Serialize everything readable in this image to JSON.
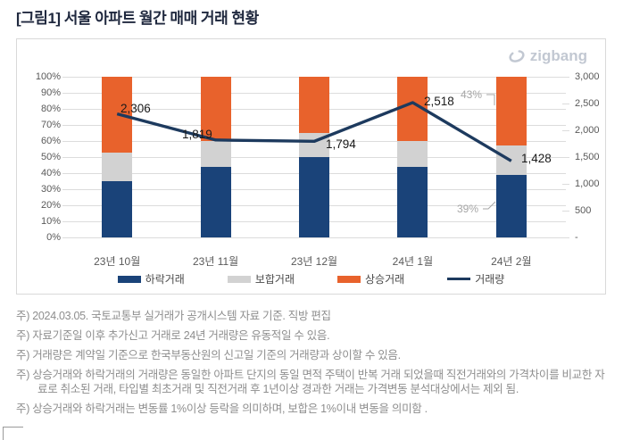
{
  "page": {
    "title": "[그림1] 서울 아파트 월간 매매 거래 현황"
  },
  "brand": {
    "logo_text": "zigbang",
    "logo_color": "#c2c8d2"
  },
  "chart_data": {
    "type": "bar",
    "subtype": "100% stacked bars with volume line overlay",
    "categories": [
      "23년 10월",
      "23년 11월",
      "23년 12월",
      "24년 1월",
      "24년 2월"
    ],
    "series": [
      {
        "name": "하락거래",
        "type": "bar",
        "color": "#1a4379",
        "values_pct": [
          35,
          44,
          50,
          44,
          39
        ]
      },
      {
        "name": "보합거래",
        "type": "bar",
        "color": "#d2d2d2",
        "values_pct": [
          18,
          16,
          15,
          16,
          18
        ]
      },
      {
        "name": "상승거래",
        "type": "bar",
        "color": "#e8622c",
        "values_pct": [
          47,
          40,
          35,
          40,
          43
        ]
      },
      {
        "name": "거래량",
        "type": "line",
        "color": "#1d3a5e",
        "values": [
          2306,
          1819,
          1794,
          2518,
          1428
        ],
        "labels": [
          "2,306",
          "1,819",
          "1,794",
          "2,518",
          "1,428"
        ]
      }
    ],
    "left_axis": {
      "min": 0,
      "max": 100,
      "ticks": [
        "100%",
        "90%",
        "80%",
        "70%",
        "60%",
        "50%",
        "40%",
        "30%",
        "20%",
        "10%",
        "0%"
      ]
    },
    "right_axis": {
      "min": 0,
      "max": 3000,
      "ticks": [
        "3,000",
        "2,500",
        "2,000",
        "1,500",
        "1,000",
        "500",
        "-"
      ]
    },
    "annotations": [
      {
        "text": "43%",
        "target": "24년 2월 상승거래"
      },
      {
        "text": "39%",
        "target": "24년 2월 하락거래"
      }
    ],
    "legend": [
      "하락거래",
      "보합거래",
      "상승거래",
      "거래량"
    ],
    "legend_position": "bottom",
    "grid": true,
    "colors": {
      "grid": "#dcdcdc",
      "axis_text": "#595959",
      "annotation_text": "#a6a6a6",
      "data_label": "#1a1a1a",
      "box_border": "#d9d9d9"
    }
  },
  "footnotes": [
    "주) 2024.03.05. 국토교통부 실거래가 공개시스템 자료 기준. 직방 편집",
    "주) 자료기준일 이후 추가신고 거래로 24년 거래량은 유동적일 수 있음.",
    "주) 거래량은 계약일 기준으로 한국부동산원의 신고일 기준의 거래량과 상이할 수 있음.",
    "주) 상승거래와 하락거래의 거래량은 동일한 아파트 단지의 동일 면적 주택이 반복 거래 되었을때 직전거래와의 가격차이를 비교한 자료로 취소된 거래, 타입별 최초거래 및 직전거래 후 1년이상 경과한 거래는 가격변동 분석대상에서는 제외 됨.",
    "주) 상승거래와 하락거래는 변동률 1%이상 등락을 의미하며, 보합은 1%이내 변동을 의미함 ."
  ]
}
